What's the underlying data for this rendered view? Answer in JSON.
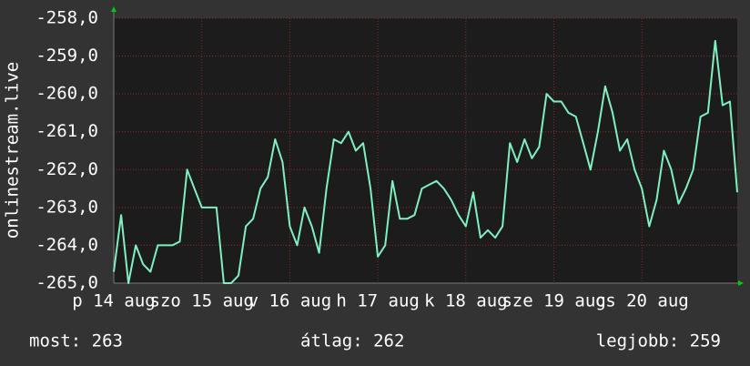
{
  "chart_data": {
    "type": "line",
    "y_label": "onlinestream.live",
    "x": [
      0,
      2,
      4,
      6,
      8,
      10,
      12,
      14,
      16,
      18,
      20,
      22,
      24,
      26,
      28,
      30,
      32,
      34,
      36,
      38,
      40,
      42,
      44,
      46,
      48,
      50,
      52,
      54,
      56,
      58,
      60,
      62,
      64,
      66,
      68,
      70,
      72,
      74,
      76,
      78,
      80,
      82,
      84,
      86,
      88,
      90,
      92,
      94,
      96,
      98,
      100,
      102,
      104,
      106,
      108,
      110,
      112,
      114,
      116,
      118,
      120,
      122,
      124,
      126,
      128,
      130,
      132,
      134,
      136,
      138,
      140,
      142,
      144,
      146,
      148,
      150,
      152,
      154,
      156,
      158,
      160,
      162,
      164,
      166,
      168,
      170
    ],
    "series": [
      {
        "color": "#7ff0c0",
        "values": [
          -264.7,
          -263.2,
          -265.0,
          -264.0,
          -264.5,
          -264.7,
          -264.0,
          -264.0,
          -264.0,
          -263.9,
          -262.0,
          -262.5,
          -263.0,
          -263.0,
          -263.0,
          -265.0,
          -265.0,
          -264.8,
          -263.5,
          -263.3,
          -262.5,
          -262.2,
          -261.2,
          -261.8,
          -263.5,
          -264.0,
          -263.0,
          -263.5,
          -264.2,
          -262.5,
          -261.2,
          -261.3,
          -261.0,
          -261.5,
          -261.3,
          -262.5,
          -264.3,
          -264.0,
          -262.3,
          -263.3,
          -263.3,
          -263.2,
          -262.5,
          -262.4,
          -262.3,
          -262.5,
          -262.8,
          -263.2,
          -263.5,
          -262.6,
          -263.8,
          -263.6,
          -263.8,
          -263.5,
          -261.3,
          -261.8,
          -261.2,
          -261.7,
          -261.4,
          -260.0,
          -260.2,
          -260.2,
          -260.5,
          -260.6,
          -261.3,
          -262.0,
          -261.0,
          -259.8,
          -260.5,
          -261.5,
          -261.2,
          -262.0,
          -262.5,
          -263.5,
          -262.8,
          -261.5,
          -262.0,
          -262.9,
          -262.5,
          -262.0,
          -260.6,
          -260.5,
          -258.6,
          -260.3,
          -260.2,
          -262.6
        ]
      }
    ],
    "xlim": [
      0,
      170
    ],
    "xticks": [
      {
        "value": 0,
        "label": "p 14 aug"
      },
      {
        "value": 24,
        "label": "szo 15 aug"
      },
      {
        "value": 48,
        "label": "v 16 aug"
      },
      {
        "value": 72,
        "label": "h 17 aug"
      },
      {
        "value": 96,
        "label": "k 18 aug"
      },
      {
        "value": 120,
        "label": "sze 19 aug"
      },
      {
        "value": 144,
        "label": "cs 20 aug"
      }
    ],
    "ylim": [
      -265,
      -258
    ],
    "yticks": [
      {
        "value": -258,
        "label": "-258,0"
      },
      {
        "value": -259,
        "label": "-259,0"
      },
      {
        "value": -260,
        "label": "-260,0"
      },
      {
        "value": -261,
        "label": "-261,0"
      },
      {
        "value": -262,
        "label": "-262,0"
      },
      {
        "value": -263,
        "label": "-263,0"
      },
      {
        "value": -264,
        "label": "-264,0"
      },
      {
        "value": -265,
        "label": "-265,0"
      }
    ],
    "grid": true,
    "footer": {
      "current": "most: 263",
      "average": "átlag: 262",
      "best": "legjobb: 259"
    }
  }
}
